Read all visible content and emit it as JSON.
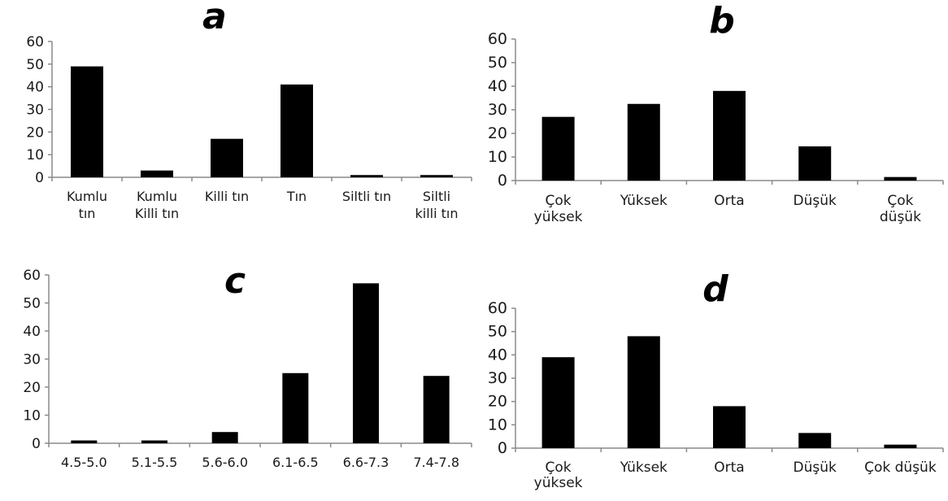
{
  "chart_data": [
    {
      "type": "bar",
      "title": "a",
      "categories": [
        [
          "Kumlu",
          "tın"
        ],
        [
          "Kumlu",
          "Killi tın"
        ],
        [
          "Killi tın"
        ],
        [
          "Tın"
        ],
        [
          "Siltli tın"
        ],
        [
          "Siltli",
          "killi tın"
        ]
      ],
      "values": [
        49,
        3,
        17,
        41,
        1,
        1
      ],
      "ylim": [
        0,
        60
      ],
      "yticks": [
        0,
        10,
        20,
        30,
        40,
        50,
        60
      ],
      "grid": false,
      "legend": "none",
      "bar_color": "#000000"
    },
    {
      "type": "bar",
      "title": "b",
      "categories": [
        [
          "Çok",
          "yüksek"
        ],
        [
          "Yüksek"
        ],
        [
          "Orta"
        ],
        [
          "Düşük"
        ],
        [
          "Çok",
          "düşük"
        ]
      ],
      "values": [
        27,
        32.5,
        38,
        14.5,
        1.5
      ],
      "ylim": [
        0,
        60
      ],
      "yticks": [
        0,
        10,
        20,
        30,
        40,
        50,
        60
      ],
      "grid": false,
      "legend": "none",
      "bar_color": "#000000"
    },
    {
      "type": "bar",
      "title": "c",
      "categories": [
        [
          "4.5-5.0"
        ],
        [
          "5.1-5.5"
        ],
        [
          "5.6-6.0"
        ],
        [
          "6.1-6.5"
        ],
        [
          "6.6-7.3"
        ],
        [
          "7.4-7.8"
        ]
      ],
      "values": [
        1,
        1,
        4,
        25,
        57,
        24
      ],
      "ylim": [
        0,
        60
      ],
      "yticks": [
        0,
        10,
        20,
        30,
        40,
        50,
        60
      ],
      "grid": false,
      "legend": "none",
      "bar_color": "#000000"
    },
    {
      "type": "bar",
      "title": "d",
      "categories": [
        [
          "Çok",
          "yüksek"
        ],
        [
          "Yüksek"
        ],
        [
          "Orta"
        ],
        [
          "Düşük"
        ],
        [
          "Çok düşük"
        ]
      ],
      "values": [
        39,
        48,
        18,
        6.5,
        1.5
      ],
      "ylim": [
        0,
        60
      ],
      "yticks": [
        0,
        10,
        20,
        30,
        40,
        50,
        60
      ],
      "grid": false,
      "legend": "none",
      "bar_color": "#000000"
    }
  ]
}
